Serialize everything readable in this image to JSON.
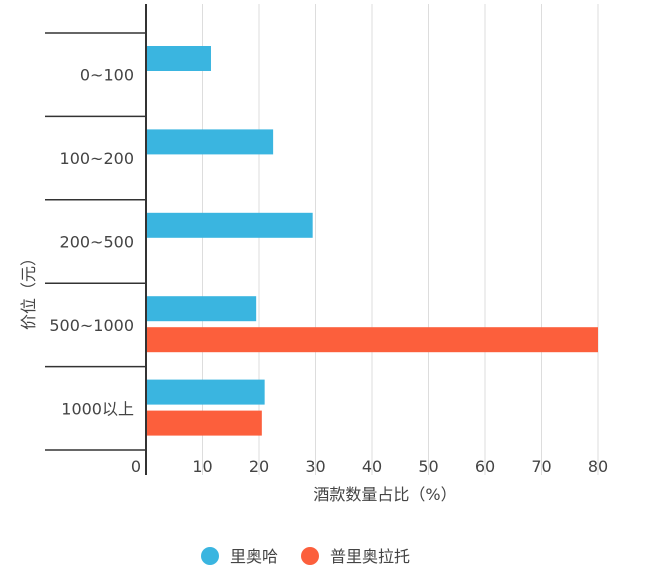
{
  "chart_data": {
    "type": "bar",
    "orientation": "horizontal",
    "categories": [
      "0~100",
      "100~200",
      "200~500",
      "500~1000",
      "1000以上"
    ],
    "series": [
      {
        "name": "里奥哈",
        "color": "#3ab5e0",
        "values": [
          11.5,
          22.5,
          29.5,
          19.5,
          21
        ]
      },
      {
        "name": "普里奥拉托",
        "color": "#fc5f3c",
        "values": [
          null,
          null,
          null,
          80,
          20.5
        ]
      }
    ],
    "xlabel": "酒款数量占比（%）",
    "ylabel": "价位（元）",
    "xlim": [
      0,
      80
    ],
    "xticks": [
      "0",
      "10",
      "20",
      "30",
      "40",
      "50",
      "60",
      "70",
      "80"
    ],
    "grid": true,
    "legend": "bottom"
  }
}
